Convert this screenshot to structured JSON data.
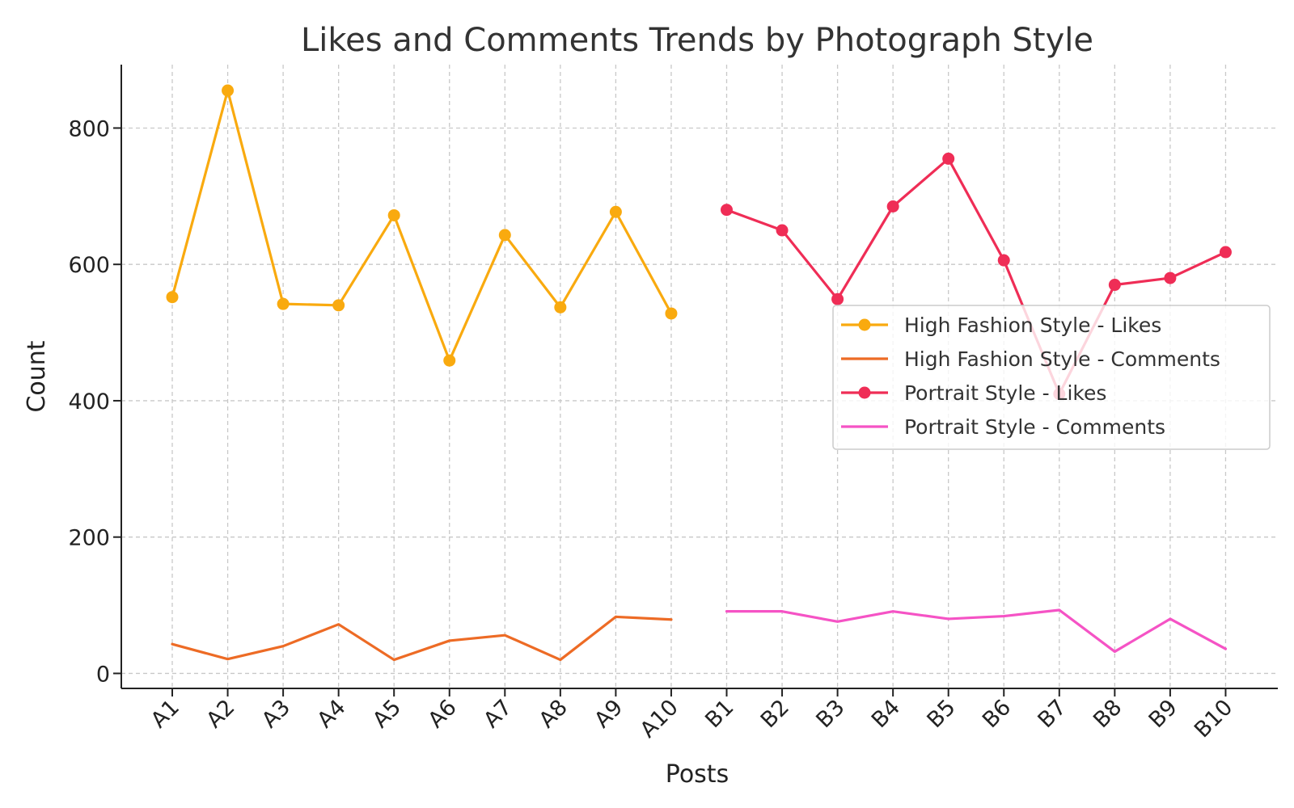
{
  "chart_data": {
    "type": "line",
    "title": "Likes and Comments Trends by Photograph Style",
    "xlabel": "Posts",
    "ylabel": "Count",
    "ylim": [
      -22,
      893
    ],
    "yticks": [
      0,
      200,
      400,
      600,
      800
    ],
    "grid": true,
    "legend_position": "center-right",
    "categories": [
      "A1",
      "A2",
      "A3",
      "A4",
      "A5",
      "A6",
      "A7",
      "A8",
      "A9",
      "A10",
      "B1",
      "B2",
      "B3",
      "B4",
      "B5",
      "B6",
      "B7",
      "B8",
      "B9",
      "B10"
    ],
    "series": [
      {
        "name": "High Fashion Style - Likes",
        "color": "#F9AA0F",
        "marker": true,
        "x": [
          "A1",
          "A2",
          "A3",
          "A4",
          "A5",
          "A6",
          "A7",
          "A8",
          "A9",
          "A10"
        ],
        "values": [
          552,
          855,
          542,
          540,
          672,
          459,
          643,
          537,
          677,
          528
        ]
      },
      {
        "name": "High Fashion Style - Comments",
        "color": "#ED6B25",
        "marker": false,
        "x": [
          "A1",
          "A2",
          "A3",
          "A4",
          "A5",
          "A6",
          "A7",
          "A8",
          "A9",
          "A10"
        ],
        "values": [
          43,
          21,
          40,
          72,
          20,
          48,
          56,
          20,
          83,
          79
        ]
      },
      {
        "name": "Portrait Style - Likes",
        "color": "#EF2D56",
        "marker": true,
        "x": [
          "B1",
          "B2",
          "B3",
          "B4",
          "B5",
          "B6",
          "B7",
          "B8",
          "B9",
          "B10"
        ],
        "values": [
          680,
          650,
          549,
          685,
          755,
          606,
          410,
          570,
          580,
          618
        ]
      },
      {
        "name": "Portrait Style - Comments",
        "color": "#F553C5",
        "marker": false,
        "x": [
          "B1",
          "B2",
          "B3",
          "B4",
          "B5",
          "B6",
          "B7",
          "B8",
          "B9",
          "B10"
        ],
        "values": [
          91,
          91,
          76,
          91,
          80,
          84,
          93,
          32,
          80,
          36
        ]
      }
    ]
  }
}
